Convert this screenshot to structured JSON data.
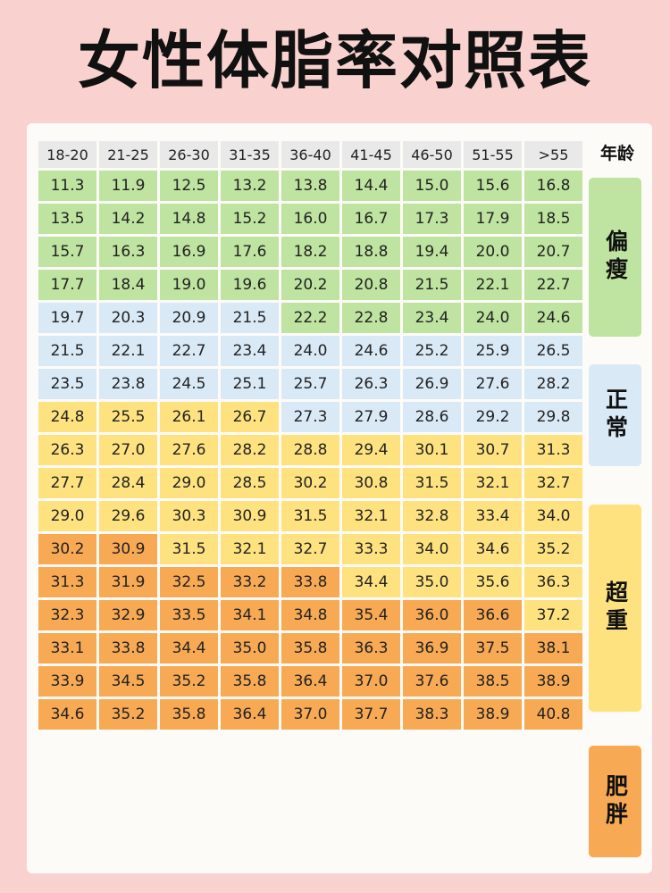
{
  "title": "女性体脂率对照表",
  "age_label": "年龄",
  "age_groups": [
    "18-20",
    "21-25",
    "26-30",
    "31-35",
    "36-40",
    "41-45",
    "46-50",
    "51-55",
    ">55"
  ],
  "categories": [
    "偏瘦",
    "正常",
    "超重",
    "肥胖"
  ],
  "colors": {
    "thin": "#bfe3a0",
    "normal": "#d9e9f6",
    "overweight": "#fde27f",
    "obese": "#f7a954"
  },
  "rows": [
    {
      "values": [
        "11.3",
        "11.9",
        "12.5",
        "13.2",
        "13.8",
        "14.4",
        "15.0",
        "15.6",
        "16.8"
      ],
      "cats": [
        "g",
        "g",
        "g",
        "g",
        "g",
        "g",
        "g",
        "g",
        "g"
      ]
    },
    {
      "values": [
        "13.5",
        "14.2",
        "14.8",
        "15.2",
        "16.0",
        "16.7",
        "17.3",
        "17.9",
        "18.5"
      ],
      "cats": [
        "g",
        "g",
        "g",
        "g",
        "g",
        "g",
        "g",
        "g",
        "g"
      ]
    },
    {
      "values": [
        "15.7",
        "16.3",
        "16.9",
        "17.6",
        "18.2",
        "18.8",
        "19.4",
        "20.0",
        "20.7"
      ],
      "cats": [
        "g",
        "g",
        "g",
        "g",
        "g",
        "g",
        "g",
        "g",
        "g"
      ]
    },
    {
      "values": [
        "17.7",
        "18.4",
        "19.0",
        "19.6",
        "20.2",
        "20.8",
        "21.5",
        "22.1",
        "22.7"
      ],
      "cats": [
        "g",
        "g",
        "g",
        "g",
        "g",
        "g",
        "g",
        "g",
        "g"
      ]
    },
    {
      "values": [
        "19.7",
        "20.3",
        "20.9",
        "21.5",
        "22.2",
        "22.8",
        "23.4",
        "24.0",
        "24.6"
      ],
      "cats": [
        "b",
        "b",
        "b",
        "b",
        "g",
        "g",
        "g",
        "g",
        "g"
      ]
    },
    {
      "values": [
        "21.5",
        "22.1",
        "22.7",
        "23.4",
        "24.0",
        "24.6",
        "25.2",
        "25.9",
        "26.5"
      ],
      "cats": [
        "b",
        "b",
        "b",
        "b",
        "b",
        "b",
        "b",
        "b",
        "b"
      ]
    },
    {
      "values": [
        "23.5",
        "23.8",
        "24.5",
        "25.1",
        "25.7",
        "26.3",
        "26.9",
        "27.6",
        "28.2"
      ],
      "cats": [
        "b",
        "b",
        "b",
        "b",
        "b",
        "b",
        "b",
        "b",
        "b"
      ]
    },
    {
      "values": [
        "24.8",
        "25.5",
        "26.1",
        "26.7",
        "27.3",
        "27.9",
        "28.6",
        "29.2",
        "29.8"
      ],
      "cats": [
        "y",
        "y",
        "y",
        "y",
        "b",
        "b",
        "b",
        "b",
        "b"
      ]
    },
    {
      "values": [
        "26.3",
        "27.0",
        "27.6",
        "28.2",
        "28.8",
        "29.4",
        "30.1",
        "30.7",
        "31.3"
      ],
      "cats": [
        "y",
        "y",
        "y",
        "y",
        "y",
        "y",
        "y",
        "y",
        "y"
      ]
    },
    {
      "values": [
        "27.7",
        "28.4",
        "29.0",
        "28.5",
        "30.2",
        "30.8",
        "31.5",
        "32.1",
        "32.7"
      ],
      "cats": [
        "y",
        "y",
        "y",
        "y",
        "y",
        "y",
        "y",
        "y",
        "y"
      ]
    },
    {
      "values": [
        "29.0",
        "29.6",
        "30.3",
        "30.9",
        "31.5",
        "32.1",
        "32.8",
        "33.4",
        "34.0"
      ],
      "cats": [
        "y",
        "y",
        "y",
        "y",
        "y",
        "y",
        "y",
        "y",
        "y"
      ]
    },
    {
      "values": [
        "30.2",
        "30.9",
        "31.5",
        "32.1",
        "32.7",
        "33.3",
        "34.0",
        "34.6",
        "35.2"
      ],
      "cats": [
        "o",
        "o",
        "y",
        "y",
        "y",
        "y",
        "y",
        "y",
        "y"
      ]
    },
    {
      "values": [
        "31.3",
        "31.9",
        "32.5",
        "33.2",
        "33.8",
        "34.4",
        "35.0",
        "35.6",
        "36.3"
      ],
      "cats": [
        "o",
        "o",
        "o",
        "o",
        "o",
        "y",
        "y",
        "y",
        "y"
      ]
    },
    {
      "values": [
        "32.3",
        "32.9",
        "33.5",
        "34.1",
        "34.8",
        "35.4",
        "36.0",
        "36.6",
        "37.2"
      ],
      "cats": [
        "o",
        "o",
        "o",
        "o",
        "o",
        "o",
        "o",
        "o",
        "y"
      ]
    },
    {
      "values": [
        "33.1",
        "33.8",
        "34.4",
        "35.0",
        "35.8",
        "36.3",
        "36.9",
        "37.5",
        "38.1"
      ],
      "cats": [
        "o",
        "o",
        "o",
        "o",
        "o",
        "o",
        "o",
        "o",
        "o"
      ]
    },
    {
      "values": [
        "33.9",
        "34.5",
        "35.2",
        "35.8",
        "36.4",
        "37.0",
        "37.6",
        "38.5",
        "38.9"
      ],
      "cats": [
        "o",
        "o",
        "o",
        "o",
        "o",
        "o",
        "o",
        "o",
        "o"
      ]
    },
    {
      "values": [
        "34.6",
        "35.2",
        "35.8",
        "36.4",
        "37.0",
        "37.7",
        "38.3",
        "38.9",
        "40.8"
      ],
      "cats": [
        "o",
        "o",
        "o",
        "o",
        "o",
        "o",
        "o",
        "o",
        "o"
      ]
    }
  ]
}
